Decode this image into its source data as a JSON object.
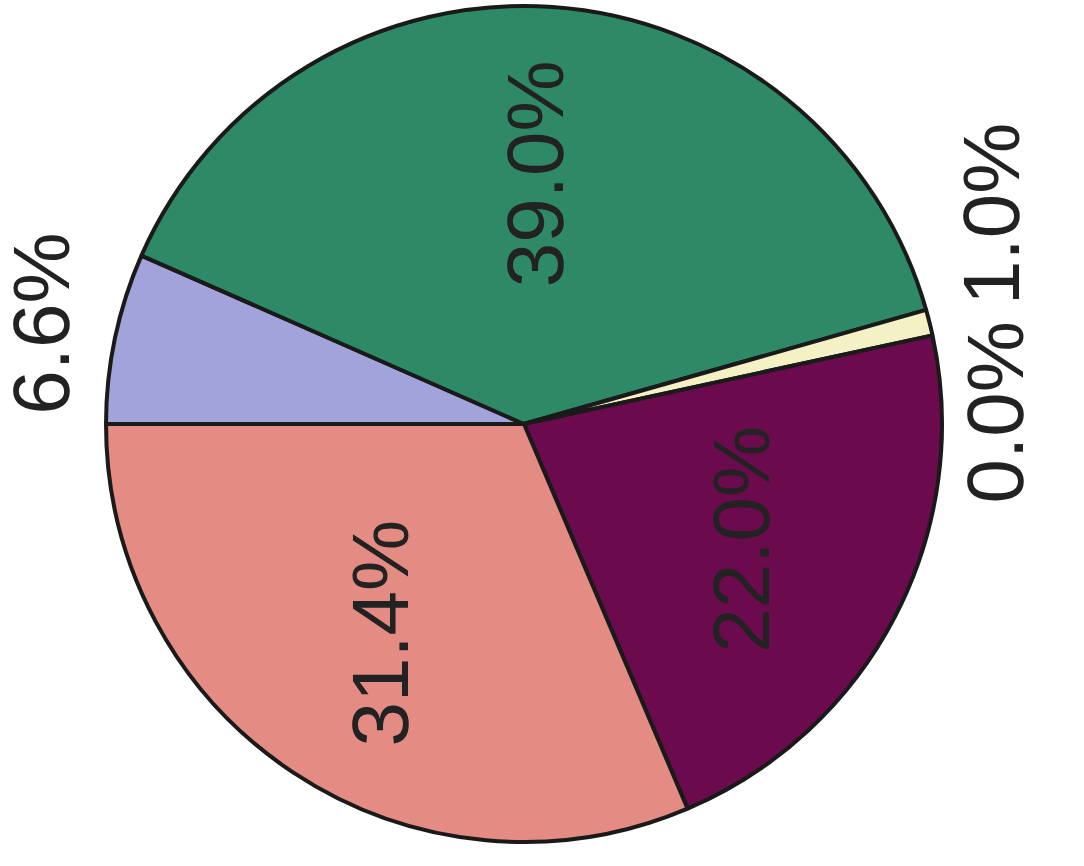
{
  "chart_data": {
    "type": "pie",
    "categories": [
      null,
      null,
      null,
      null,
      null,
      null
    ],
    "values": [
      6.6,
      39.0,
      1.0,
      0.0,
      22.0,
      31.4
    ],
    "colors": [
      "#a3a3dc",
      "#2e8a66",
      "#f4f2c4",
      "#e0e0e0",
      "#6b0a4c",
      "#e48c84"
    ],
    "value_labels": [
      "6.6%",
      "39.0%",
      "1.0%",
      "0.0%",
      "22.0%",
      "31.4%"
    ],
    "legend": false
  }
}
